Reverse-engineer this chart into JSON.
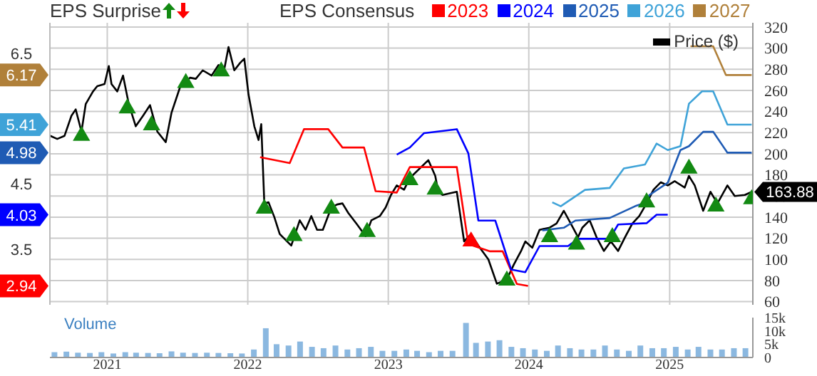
{
  "chart_data": [
    {
      "type": "line",
      "title": "EPS Surprise",
      "legend_title": "EPS Consensus",
      "legend": "top",
      "grid": true,
      "tick_labels": "y",
      "xlim": [
        "2020-08-05",
        "2025-08-05"
      ],
      "xticks": [
        {
          "value": "2021",
          "label": null
        },
        {
          "value": "2022",
          "label": null
        },
        {
          "value": "2023",
          "label": null
        },
        {
          "value": "2024",
          "label": null
        },
        {
          "value": "2025",
          "label": null
        }
      ],
      "ylim": [
        2.65,
        6.97
      ],
      "yticks": [
        2.94,
        3.5,
        4.03,
        4.5,
        4.98,
        5.41,
        6.17,
        6.5
      ],
      "y2lim": [
        57,
        324
      ],
      "y2ticks": [
        60,
        80,
        100,
        120,
        140,
        160,
        180,
        200,
        220,
        240,
        260,
        280,
        300,
        320
      ],
      "series": [
        {
          "name": "Price ($)",
          "type": "line",
          "axis": "y2",
          "color": "#000000",
          "x": [
            "2020-08-06",
            "2020-08-24",
            "2020-09-12",
            "2020-09-30",
            "2020-10-11",
            "2020-10-26",
            "2020-11-06",
            "2020-11-25",
            "2020-12-06",
            "2020-12-25",
            "2021-01-05",
            "2021-01-12",
            "2021-01-27",
            "2021-02-11",
            "2021-02-26",
            "2021-03-16",
            "2021-04-04",
            "2021-04-22",
            "2021-05-11",
            "2021-06-02",
            "2021-06-17",
            "2021-07-09",
            "2021-08-04",
            "2021-08-19",
            "2021-09-06",
            "2021-09-29",
            "2021-10-17",
            "2021-11-01",
            "2021-11-12",
            "2021-11-27",
            "2021-12-12",
            "2021-12-23",
            "2022-01-03",
            "2022-01-18",
            "2022-01-29",
            "2022-02-05",
            "2022-02-13",
            "2022-02-24",
            "2022-03-11",
            "2022-03-25",
            "2022-04-24",
            "2022-05-16",
            "2022-05-31",
            "2022-06-15",
            "2022-06-30",
            "2022-07-15",
            "2022-08-06",
            "2022-08-21",
            "2022-09-04",
            "2022-09-19",
            "2022-10-12",
            "2022-11-03",
            "2022-11-18",
            "2022-12-10",
            "2022-12-25",
            "2023-01-08",
            "2023-01-23",
            "2023-02-11",
            "2023-02-26",
            "2023-04-15",
            "2023-05-03",
            "2023-05-11",
            "2023-05-22",
            "2023-06-28",
            "2023-07-17",
            "2023-08-04",
            "2023-08-23",
            "2023-09-18",
            "2023-10-10",
            "2023-11-05",
            "2023-11-23",
            "2023-12-12",
            "2023-12-23",
            "2024-01-10",
            "2024-01-29",
            "2024-02-24",
            "2024-03-13",
            "2024-04-01",
            "2024-04-19",
            "2024-05-08",
            "2024-05-19",
            "2024-06-07",
            "2024-06-25",
            "2024-07-14",
            "2024-08-01",
            "2024-08-20",
            "2024-09-07",
            "2024-09-26",
            "2024-10-14",
            "2024-11-02",
            "2024-11-20",
            "2024-12-09",
            "2024-12-27",
            "2025-01-14",
            "2025-02-09",
            "2025-02-20",
            "2025-03-07",
            "2025-03-29",
            "2025-04-17",
            "2025-05-05",
            "2025-05-31",
            "2025-06-19",
            "2025-07-15",
            "2025-08-02"
          ],
          "values": [
            217,
            214,
            217,
            236,
            242,
            221,
            247,
            259,
            264,
            266,
            283,
            266,
            259,
            274,
            247,
            226,
            236,
            246,
            221,
            211,
            239,
            263,
            272,
            271,
            279,
            274,
            284,
            280,
            301,
            279,
            286,
            290,
            256,
            226,
            213,
            228,
            153,
            154,
            140,
            124,
            113,
            137,
            128,
            141,
            128,
            128,
            149,
            152,
            153,
            144,
            133,
            122,
            137,
            141,
            149,
            161,
            170,
            166,
            177,
            194,
            179,
            164,
            161,
            164,
            117,
            124,
            113,
            100,
            77,
            81,
            95,
            108,
            117,
            111,
            128,
            130,
            134,
            146,
            134,
            121,
            130,
            137,
            121,
            108,
            117,
            108,
            121,
            134,
            141,
            153,
            166,
            173,
            170,
            174,
            168,
            179,
            170,
            146,
            164,
            153,
            170,
            160,
            161,
            163.88
          ],
          "value_labels": [
            null,
            null,
            null,
            null,
            null,
            null,
            null,
            null,
            null,
            null,
            null,
            null,
            null,
            null,
            null,
            null,
            null,
            null,
            null,
            null,
            null,
            null,
            null,
            null,
            null,
            null,
            null,
            null,
            null,
            null,
            null,
            null,
            null,
            null,
            null,
            null,
            null,
            null,
            null,
            null,
            null,
            null,
            null,
            null,
            null,
            null,
            null,
            null,
            null,
            null,
            null,
            null,
            null,
            null,
            null,
            null,
            null,
            null,
            null,
            null,
            null,
            null,
            null,
            null,
            null,
            null,
            null,
            null,
            null,
            null,
            null,
            null,
            null,
            null,
            null,
            null,
            null,
            null,
            null,
            null,
            null,
            null,
            null,
            null,
            null,
            null,
            null,
            null,
            null,
            null,
            null,
            null,
            null,
            null,
            null,
            null,
            null,
            null,
            null,
            null,
            null,
            null,
            null,
            "163.88"
          ]
        },
        {
          "name": "2023",
          "type": "line",
          "axis": "y",
          "color": "#ff0000",
          "x": [
            "2022-02-02",
            "2022-04-20",
            "2022-05-27",
            "2022-07-29",
            "2022-09-04",
            "2022-10-30",
            "2022-11-29",
            "2023-01-23",
            "2023-02-26",
            "2023-06-28",
            "2023-07-28",
            "2023-09-21",
            "2023-10-25",
            "2023-12-01",
            "2023-12-30"
          ],
          "values": [
            4.91,
            4.82,
            5.34,
            5.34,
            5.06,
            5.06,
            4.39,
            4.37,
            4.76,
            4.76,
            3.58,
            3.47,
            3.47,
            2.97,
            2.94
          ]
        },
        {
          "name": "2024",
          "type": "line",
          "axis": "y",
          "color": "#0000ff",
          "x": [
            "2023-01-23",
            "2023-02-26",
            "2023-04-04",
            "2023-06-28",
            "2023-07-28",
            "2023-08-23",
            "2023-10-06",
            "2023-11-16",
            "2023-12-23",
            "2024-01-29",
            "2024-04-12",
            "2024-05-08",
            "2024-07-29",
            "2024-08-20",
            "2024-11-02",
            "2024-11-28",
            "2024-12-27"
          ],
          "values": [
            4.95,
            5.06,
            5.28,
            5.34,
            4.97,
            3.94,
            3.94,
            3.19,
            3.15,
            3.55,
            3.55,
            3.66,
            3.66,
            3.88,
            3.9,
            4.03,
            4.03
          ]
        },
        {
          "name": "2025",
          "type": "line",
          "axis": "y",
          "color": "#1f5bb4",
          "x": [
            "2024-02-05",
            "2024-04-01",
            "2024-05-01",
            "2024-07-29",
            "2024-10-03",
            "2024-11-02",
            "2024-11-09",
            "2024-12-27",
            "2025-01-29",
            "2025-02-20",
            "2025-03-29",
            "2025-04-24",
            "2025-05-31",
            "2025-08-02"
          ],
          "values": [
            3.79,
            3.83,
            3.94,
            3.98,
            4.16,
            4.22,
            4.33,
            4.52,
            5.02,
            5.08,
            5.3,
            5.3,
            4.98,
            4.98
          ]
        },
        {
          "name": "2026",
          "type": "line",
          "axis": "y",
          "color": "#3fa3d8",
          "x": [
            "2024-03-02",
            "2024-03-24",
            "2024-05-26",
            "2024-07-29",
            "2024-09-04",
            "2024-10-29",
            "2024-11-28",
            "2024-12-27",
            "2025-01-29",
            "2025-02-20",
            "2025-03-26",
            "2025-04-24",
            "2025-05-31",
            "2025-08-02"
          ],
          "values": [
            4.22,
            4.16,
            4.41,
            4.44,
            4.74,
            4.8,
            5.12,
            5.02,
            5.08,
            5.73,
            5.92,
            5.92,
            5.41,
            5.41
          ]
        },
        {
          "name": "2027",
          "type": "line",
          "axis": "y",
          "color": "#b0803a",
          "x": [
            "2025-02-24",
            "2025-04-24",
            "2025-05-27",
            "2025-08-02"
          ],
          "values": [
            6.61,
            6.61,
            6.17,
            6.17
          ]
        },
        {
          "type": "scatter",
          "axis": "y2",
          "marker": "triangle",
          "color": "#138a13",
          "x": [
            "2020-10-26",
            "2021-02-22",
            "2021-04-26",
            "2021-07-24",
            "2021-10-24",
            "2022-02-13",
            "2022-05-01",
            "2022-08-06",
            "2022-11-07",
            "2023-02-26",
            "2023-05-03",
            "2023-11-05",
            "2024-02-24",
            "2024-05-04",
            "2024-08-05",
            "2024-11-02",
            "2025-02-20",
            "2025-05-01",
            "2025-08-02"
          ],
          "values": [
            217,
            243,
            227,
            267,
            278,
            148,
            122,
            148,
            126,
            175,
            166,
            80,
            121,
            114,
            121,
            154,
            186,
            150,
            157
          ]
        },
        {
          "type": "scatter",
          "axis": "y2",
          "marker": "triangle",
          "color": "#ff0000",
          "x": [
            "2023-08-04"
          ],
          "values": [
            117
          ]
        }
      ]
    },
    {
      "type": "bar",
      "title": "Volume",
      "color": "#8bb8e0",
      "grid": false,
      "xlim": [
        "2020-08-05",
        "2025-08-05"
      ],
      "xticks": [
        "2021",
        "2022",
        "2023",
        "2024",
        "2025"
      ],
      "ylim": [
        0,
        15000
      ],
      "yticks": [
        {
          "value": 0,
          "label": "0"
        },
        {
          "value": 5000,
          "label": "5k"
        },
        {
          "value": 10000,
          "label": "10k"
        },
        {
          "value": 15000,
          "label": "15k"
        }
      ],
      "x": [
        "2020-08-15",
        "2020-09-15",
        "2020-10-15",
        "2020-11-15",
        "2020-12-15",
        "2021-01-15",
        "2021-02-15",
        "2021-03-15",
        "2021-04-15",
        "2021-05-15",
        "2021-06-15",
        "2021-07-15",
        "2021-08-15",
        "2021-09-15",
        "2021-10-15",
        "2021-11-15",
        "2021-12-15",
        "2022-01-15",
        "2022-02-15",
        "2022-03-15",
        "2022-04-15",
        "2022-05-15",
        "2022-06-15",
        "2022-07-15",
        "2022-08-15",
        "2022-09-15",
        "2022-10-15",
        "2022-11-15",
        "2022-12-15",
        "2023-01-15",
        "2023-02-15",
        "2023-03-15",
        "2023-04-15",
        "2023-05-15",
        "2023-06-15",
        "2023-07-20",
        "2023-08-15",
        "2023-09-15",
        "2023-10-15",
        "2023-11-15",
        "2023-12-15",
        "2024-01-15",
        "2024-02-15",
        "2024-03-15",
        "2024-04-15",
        "2024-05-15",
        "2024-06-15",
        "2024-07-15",
        "2024-08-15",
        "2024-09-15",
        "2024-10-15",
        "2024-11-15",
        "2024-12-15",
        "2025-01-15",
        "2025-02-15",
        "2025-03-15",
        "2025-04-15",
        "2025-05-15",
        "2025-06-15",
        "2025-07-15"
      ],
      "values": [
        2000,
        2200,
        1800,
        1700,
        2000,
        1500,
        2000,
        1800,
        1700,
        1600,
        2300,
        1800,
        1700,
        1800,
        1700,
        1600,
        1500,
        3000,
        11000,
        5000,
        4500,
        6000,
        4000,
        3500,
        4500,
        3000,
        3500,
        4000,
        2500,
        2500,
        3000,
        2500,
        2000,
        2500,
        2500,
        13000,
        5500,
        6000,
        6500,
        4000,
        3500,
        3000,
        2500,
        4500,
        3500,
        3000,
        3000,
        4500,
        3000,
        2500,
        4500,
        3500,
        3500,
        4000,
        3000,
        4000,
        3000,
        3000,
        3500,
        3500
      ]
    }
  ]
}
